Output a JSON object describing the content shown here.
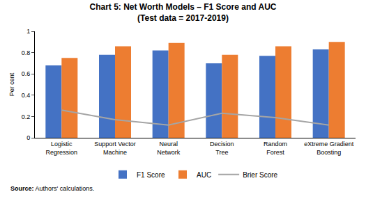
{
  "chart_data": {
    "type": "bar",
    "title": "Chart 5: Net Worth Models – F1 Score and AUC",
    "subtitle": "(Test data = 2017-2019)",
    "y_label": "Per cent",
    "source": "Source: Authors' calculations.",
    "categories": [
      "Logistic Regression",
      "Support Vector Machine",
      "Neural Network",
      "Decision Tree",
      "Random Forest",
      "eXtreme Gradient Boosting"
    ],
    "series": [
      {
        "name": "F1 Score",
        "type": "bar",
        "color": "#4472c4",
        "values": [
          0.68,
          0.78,
          0.82,
          0.7,
          0.77,
          0.83
        ]
      },
      {
        "name": "AUC",
        "type": "bar",
        "color": "#ed7d31",
        "values": [
          0.75,
          0.86,
          0.89,
          0.78,
          0.86,
          0.9
        ]
      },
      {
        "name": "Brier Score",
        "type": "line",
        "color": "#a5a5a5",
        "values": [
          0.26,
          0.17,
          0.12,
          0.23,
          0.19,
          0.12
        ]
      }
    ],
    "ylim": [
      0,
      1
    ],
    "yticks": [
      0,
      0.2,
      0.4,
      0.6,
      0.8,
      1
    ],
    "grid": false,
    "legend": "bottom"
  }
}
